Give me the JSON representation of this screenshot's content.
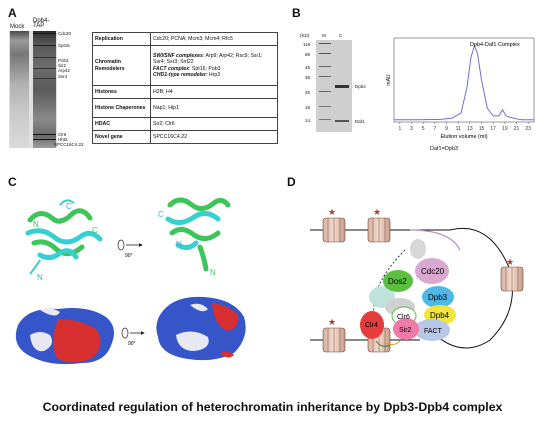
{
  "panels": {
    "a": "A",
    "b": "B",
    "c": "C",
    "d": "D"
  },
  "panel_a": {
    "lane_labels": [
      "Mock",
      "Dpb4-TAP"
    ],
    "band_labels": [
      "Cdc20",
      "Spt16",
      "Pob3",
      "Sir2",
      "Arp42",
      "Ssr4",
      "Clr6",
      "Hht2",
      "SPCC16C4.22"
    ],
    "table": [
      {
        "category": "Replication",
        "content": "Cdc20; PCNA; Mcm3; Mcm4; Rfc5"
      },
      {
        "category": "Chromatin Remodelers",
        "rows": [
          {
            "emph": "SWI/SNF complexes",
            "text": ": Arp9; Arp42; Rsc9; Ssr1; Ssr4; Ssr3; Snf22"
          },
          {
            "emph": "FACT complex",
            "text": ": Spt16; Pob3"
          },
          {
            "emph": "CHD1-type remodeler",
            "text": ": Hrp3"
          }
        ]
      },
      {
        "category": "Histones",
        "content": "H2B; H4"
      },
      {
        "category": "Histone Chaperones",
        "content": "Nap1; Hip1"
      },
      {
        "category": "HDAC",
        "content": "Sir2; Clr6"
      },
      {
        "category": "Novel gene",
        "content": "SPCC16C4.22"
      }
    ]
  },
  "panel_b": {
    "kd_label": "(KD)",
    "markers": [
      "116",
      "66",
      "45",
      "35",
      "25",
      "18",
      "14"
    ],
    "lane_headers": [
      "M",
      "C"
    ],
    "band_labels": [
      "Dpb4",
      "Daf1"
    ],
    "chart_data": {
      "type": "line",
      "title": "Dpb4-Daf1 Complex",
      "xlabel": "Elution volume (ml)",
      "ylabel": "mAU",
      "x_ticks": [
        "1",
        "3",
        "5",
        "7",
        "9",
        "11",
        "13",
        "15",
        "17",
        "19",
        "21",
        "23"
      ],
      "xlim": [
        0,
        24
      ],
      "series": [
        {
          "x": [
            0,
            4,
            8,
            10,
            11.5,
            12.5,
            13.2,
            13.8,
            14.3,
            15,
            16,
            17,
            18,
            18.6,
            19.2,
            20,
            21,
            22,
            24
          ],
          "y": [
            3,
            3,
            3.5,
            5,
            12,
            45,
            85,
            100,
            90,
            55,
            18,
            8,
            8,
            16,
            8,
            6,
            4,
            3,
            3
          ]
        }
      ]
    },
    "footnote": "Daf1=Dpb3"
  },
  "panel_c": {
    "chain_labels": [
      "N",
      "C",
      "N",
      "C",
      "C",
      "N",
      "N"
    ],
    "rotation": "90°"
  },
  "panel_d": {
    "proteins": [
      "Cdc20",
      "Dos2",
      "Dpb3",
      "Dpb4",
      "Clr6",
      "Clr4",
      "Sir2",
      "FACT"
    ],
    "colors": {
      "Cdc20": "#d9a8d0",
      "Dos2": "#5bbf3f",
      "Dpb3": "#4fb8e6",
      "Dpb4": "#f2e63a",
      "Clr6": "#ffffff",
      "Clr4": "#e63c3c",
      "Sir2": "#f07aa8",
      "FACT": "#b7c7e8"
    }
  },
  "caption": "Coordinated regulation of heterochromatin inheritance by Dpb3-Dpb4 complex"
}
